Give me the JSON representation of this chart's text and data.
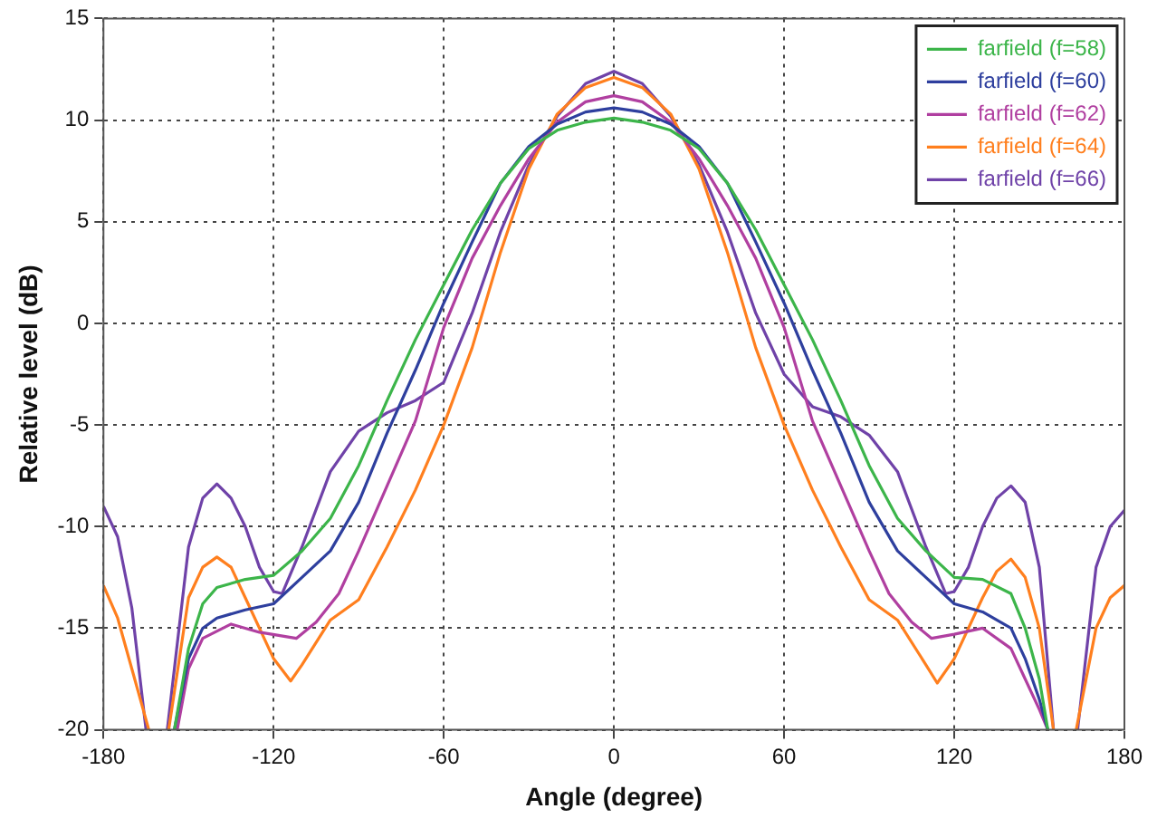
{
  "chart_data": {
    "type": "line",
    "xlabel": "Angle (degree)",
    "ylabel": "Relative level (dB)",
    "xlim": [
      -180,
      180
    ],
    "xticks": [
      -180,
      -120,
      -60,
      0,
      60,
      120,
      180
    ],
    "ylim": [
      -20,
      15
    ],
    "yticks": [
      -20,
      -15,
      -10,
      -5,
      0,
      5,
      10,
      15
    ],
    "grid": true,
    "legend": "top right",
    "marker": "none",
    "line_style": "solid",
    "series": [
      {
        "name": "farfield (f=58)",
        "color": "#3cb54a",
        "x": [
          -155,
          -150,
          -145,
          -140,
          -130,
          -120,
          -110,
          -100,
          -90,
          -80,
          -70,
          -60,
          -50,
          -40,
          -30,
          -20,
          -10,
          0,
          10,
          20,
          30,
          40,
          50,
          60,
          70,
          80,
          90,
          100,
          110,
          120,
          130,
          140,
          145,
          150,
          153
        ],
        "values": [
          -20,
          -16,
          -13.8,
          -13,
          -12.6,
          -12.4,
          -11.2,
          -9.6,
          -7,
          -3.8,
          -0.8,
          1.9,
          4.6,
          6.9,
          8.6,
          9.5,
          9.9,
          10.1,
          9.9,
          9.5,
          8.6,
          6.9,
          4.6,
          1.9,
          -0.8,
          -3.8,
          -7,
          -9.6,
          -11.2,
          -12.5,
          -12.6,
          -13.3,
          -15,
          -17.5,
          -20
        ]
      },
      {
        "name": "farfield (f=60)",
        "color": "#2e3f9e",
        "x": [
          -155,
          -150,
          -145,
          -140,
          -130,
          -120,
          -110,
          -100,
          -90,
          -80,
          -70,
          -60,
          -50,
          -40,
          -30,
          -20,
          -10,
          0,
          10,
          20,
          30,
          40,
          50,
          60,
          70,
          80,
          90,
          100,
          110,
          120,
          130,
          140,
          145,
          150,
          153
        ],
        "values": [
          -20,
          -16.5,
          -15,
          -14.5,
          -14.1,
          -13.8,
          -12.5,
          -11.2,
          -8.8,
          -5.4,
          -2.3,
          1,
          4,
          6.9,
          8.7,
          9.8,
          10.4,
          10.6,
          10.4,
          9.8,
          8.7,
          6.9,
          4,
          1,
          -2.3,
          -5.4,
          -8.8,
          -11.2,
          -12.5,
          -13.8,
          -14.2,
          -15,
          -16.5,
          -18.5,
          -20
        ]
      },
      {
        "name": "farfield (f=62)",
        "color": "#b03fa0",
        "x": [
          -154,
          -150,
          -145,
          -135,
          -125,
          -112,
          -105,
          -97,
          -90,
          -80,
          -70,
          -60,
          -50,
          -40,
          -30,
          -20,
          -10,
          0,
          10,
          20,
          30,
          40,
          50,
          60,
          70,
          80,
          90,
          97,
          105,
          112,
          120,
          130,
          140,
          145,
          150,
          153
        ],
        "values": [
          -20,
          -17,
          -15.5,
          -14.8,
          -15.2,
          -15.5,
          -14.7,
          -13.3,
          -11.2,
          -8,
          -4.8,
          -0.2,
          3.2,
          5.8,
          8.1,
          9.9,
          10.9,
          11.2,
          10.9,
          9.9,
          8.1,
          5.8,
          3.2,
          -0.2,
          -4.8,
          -8,
          -11.2,
          -13.3,
          -14.7,
          -15.5,
          -15.3,
          -15,
          -16,
          -17.5,
          -19,
          -20
        ]
      },
      {
        "name": "farfield (f=64)",
        "color": "#ff7f1e",
        "x": [
          -180,
          -175,
          -170,
          -164,
          -160.5,
          -157,
          -150,
          -145,
          -140,
          -135,
          -130,
          -120,
          -114,
          -110,
          -100,
          -90,
          -80,
          -70,
          -60,
          -50,
          -40,
          -30,
          -20,
          -10,
          0,
          10,
          20,
          30,
          40,
          50,
          60,
          70,
          80,
          90,
          100,
          110,
          114,
          120,
          130,
          135,
          140,
          145,
          150,
          155,
          159,
          163,
          170,
          175,
          180
        ],
        "values": [
          -12.9,
          -14.5,
          -17,
          -20,
          null,
          -20,
          -13.5,
          -12,
          -11.5,
          -12,
          -13.5,
          -16.5,
          -17.6,
          -16.8,
          -14.6,
          -13.6,
          -11,
          -8.2,
          -5,
          -1.2,
          3.5,
          7.6,
          10.3,
          11.6,
          12.1,
          11.6,
          10.3,
          7.6,
          3.5,
          -1.2,
          -5,
          -8.2,
          -11,
          -13.6,
          -14.6,
          -16.8,
          -17.7,
          -16.5,
          -13.5,
          -12.2,
          -11.6,
          -12.5,
          -15,
          -20,
          null,
          -20,
          -15,
          -13.5,
          -12.9
        ]
      },
      {
        "name": "farfield (f=66)",
        "color": "#6f42a8",
        "x": [
          -180,
          -175,
          -170,
          -165,
          -161,
          -157.5,
          -150,
          -145,
          -140,
          -135,
          -130,
          -125,
          -120,
          -117,
          -110,
          -100,
          -90,
          -80,
          -70,
          -60,
          -50,
          -40,
          -30,
          -20,
          -10,
          0,
          10,
          20,
          30,
          40,
          50,
          60,
          70,
          80,
          90,
          100,
          110,
          117,
          120,
          125,
          130,
          135,
          140,
          145,
          150,
          155,
          159,
          163.5,
          170,
          175,
          180
        ],
        "values": [
          -9,
          -10.5,
          -14,
          -20,
          null,
          -20,
          -11,
          -8.6,
          -7.9,
          -8.6,
          -10,
          -12,
          -13.2,
          -13.3,
          -11,
          -7.3,
          -5.3,
          -4.4,
          -3.8,
          -2.9,
          0.5,
          4.5,
          7.8,
          10.2,
          11.8,
          12.4,
          11.8,
          10.2,
          7.8,
          4.5,
          0.5,
          -2.5,
          -4.1,
          -4.6,
          -5.5,
          -7.3,
          -11,
          -13.3,
          -13.2,
          -12,
          -10,
          -8.6,
          -8,
          -8.8,
          -12,
          -20,
          null,
          -20,
          -12,
          -10,
          -9.2
        ]
      }
    ]
  }
}
